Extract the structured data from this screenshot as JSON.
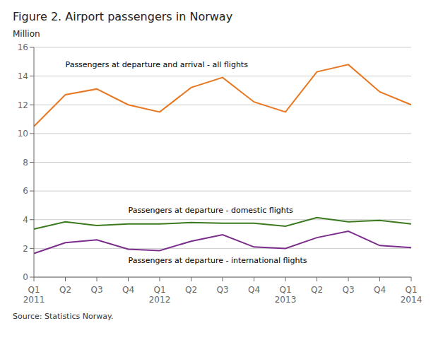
{
  "chart_data": {
    "type": "line",
    "title": "Figure 2. Airport passengers in Norway",
    "y_label": "Million",
    "source": "Source: Statistics Norway.",
    "categories": [
      "Q1\n2011",
      "Q2",
      "Q3",
      "Q4",
      "Q1\n2012",
      "Q2",
      "Q3",
      "Q4",
      "Q1\n2013",
      "Q2",
      "Q3",
      "Q4",
      "Q1\n2014"
    ],
    "series": [
      {
        "name": "Passengers at departure and arrival - all flights",
        "color": "#E87722",
        "values": [
          10.5,
          12.7,
          13.1,
          12.0,
          11.5,
          13.2,
          13.9,
          12.2,
          11.5,
          14.3,
          14.8,
          12.9,
          12.0
        ]
      },
      {
        "name": "Passengers at departure - domestic flights",
        "color": "#3B7A1E",
        "values": [
          3.35,
          3.85,
          3.6,
          3.7,
          3.7,
          3.8,
          3.75,
          3.75,
          3.55,
          4.15,
          3.85,
          3.95,
          3.7
        ]
      },
      {
        "name": "Passengers at departure - international flights",
        "color": "#7B2D8B",
        "values": [
          1.65,
          2.4,
          2.6,
          1.95,
          1.85,
          2.5,
          2.95,
          2.1,
          2.0,
          2.75,
          3.2,
          2.2,
          2.05
        ]
      }
    ],
    "ylim": [
      0,
      16
    ],
    "yticks": [
      0,
      2,
      4,
      6,
      8,
      10,
      12,
      14,
      16
    ],
    "grid": true
  }
}
